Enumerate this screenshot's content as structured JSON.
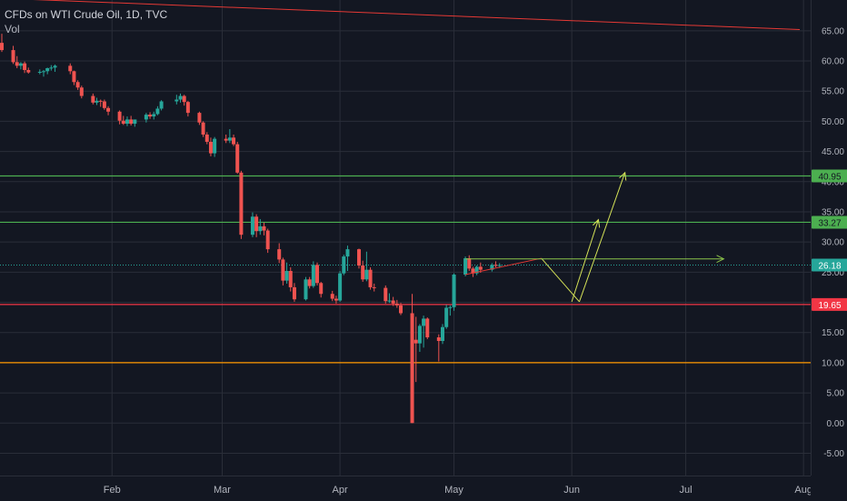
{
  "legend": {
    "title": "CFDs on WTI Crude Oil, 1D, TVC",
    "volume": "Vol"
  },
  "colors": {
    "background": "#131722",
    "grid": "#2a2e39",
    "up": "#26a69a",
    "down": "#ef5350",
    "level_green": "#4caf50",
    "level_red": "#f23645",
    "level_orange": "#ff9800",
    "arrow_yellow": "#d4e157",
    "arrow_green": "#8bc34a",
    "trend_red": "#e53935",
    "price_line": "#26a69a"
  },
  "chart_data": {
    "type": "candlestick",
    "title": "CFDs on WTI Crude Oil, 1D, TVC",
    "ylim": [
      -8.7,
      70.1
    ],
    "x_range_days": [
      3,
      213
    ],
    "y_ticks": [
      "65.00",
      "60.00",
      "55.00",
      "50.00",
      "45.00",
      "40.00",
      "35.00",
      "30.00",
      "25.00",
      "20.00",
      "15.00",
      "10.00",
      "5.00",
      "0.00",
      "-5.00"
    ],
    "x_labels": [
      {
        "label": "Feb",
        "day": 32
      },
      {
        "label": "Mar",
        "day": 61
      },
      {
        "label": "Apr",
        "day": 92
      },
      {
        "label": "May",
        "day": 122
      },
      {
        "label": "Jun",
        "day": 153
      },
      {
        "label": "Jul",
        "day": 183
      },
      {
        "label": "Aug",
        "day": 214
      }
    ],
    "candles": [
      [
        3,
        63,
        64.5,
        61.5,
        61.8
      ],
      [
        6,
        61.8,
        62.5,
        59.5,
        59.8
      ],
      [
        7,
        59.8,
        60.8,
        58.8,
        59.2
      ],
      [
        8,
        59.2,
        59.8,
        58.6,
        59.6
      ],
      [
        9,
        59.6,
        59.9,
        58,
        58.5
      ],
      [
        10,
        58.5,
        58.9,
        57.9,
        58.1
      ],
      [
        13,
        58.1,
        58.6,
        57.8,
        58.2
      ],
      [
        14,
        58.2,
        58.5,
        57.4,
        58.3
      ],
      [
        15,
        58.3,
        58.9,
        57.8,
        58.8
      ],
      [
        16,
        58.8,
        59.3,
        58.4,
        58.9
      ],
      [
        17,
        58.9,
        59.4,
        58.2,
        59.2
      ],
      [
        21,
        59.2,
        59.6,
        57.8,
        58.3
      ],
      [
        22,
        58.3,
        58.4,
        56,
        56.5
      ],
      [
        23,
        56.5,
        56.8,
        55.2,
        55.6
      ],
      [
        24,
        55.6,
        55.9,
        53.8,
        54.2
      ],
      [
        27,
        54.2,
        54.6,
        52.8,
        53.1
      ],
      [
        28,
        53.1,
        53.9,
        52.7,
        53.4
      ],
      [
        29,
        53.4,
        53.6,
        52.4,
        53.3
      ],
      [
        30,
        53.3,
        53.6,
        51.9,
        52.2
      ],
      [
        31,
        52.2,
        52.5,
        51,
        51.6
      ],
      [
        34,
        51.6,
        51.8,
        49.5,
        50.1
      ],
      [
        35,
        50.1,
        50.9,
        49.4,
        49.6
      ],
      [
        36,
        49.6,
        50.8,
        49.2,
        50.3
      ],
      [
        37,
        50.3,
        50.9,
        49.3,
        49.6
      ],
      [
        38,
        49.6,
        50.2,
        49.1,
        50.3
      ],
      [
        41,
        50.3,
        51.4,
        49.8,
        51.1
      ],
      [
        42,
        51.1,
        51.5,
        50.4,
        50.8
      ],
      [
        43,
        50.8,
        51.6,
        50.3,
        51.2
      ],
      [
        44,
        51.2,
        52.5,
        51,
        52.1
      ],
      [
        45,
        52.1,
        53.5,
        51.8,
        53.3
      ],
      [
        49,
        53.3,
        54.4,
        52.8,
        53.6
      ],
      [
        50,
        53.6,
        54.6,
        53.1,
        54.2
      ],
      [
        51,
        54.2,
        54.4,
        52.6,
        53.2
      ],
      [
        52,
        53.2,
        53.4,
        50.8,
        51.4
      ],
      [
        55,
        51.4,
        51.6,
        49.4,
        49.8
      ],
      [
        56,
        49.8,
        50,
        47.4,
        47.8
      ],
      [
        57,
        47.8,
        48.2,
        46.2,
        46.6
      ],
      [
        58,
        46.6,
        47.3,
        44.2,
        44.7
      ],
      [
        59,
        44.7,
        47.4,
        44.1,
        47.1
      ],
      [
        62,
        47.1,
        47.8,
        46.4,
        46.8
      ],
      [
        63,
        46.8,
        48.7,
        46.4,
        47.3
      ],
      [
        64,
        47.3,
        47.8,
        45.9,
        46.2
      ],
      [
        65,
        46.2,
        46.6,
        41.3,
        41.5
      ],
      [
        66,
        41.5,
        41.8,
        30.5,
        31.2
      ],
      [
        69,
        31.2,
        34.9,
        30.8,
        34.2
      ],
      [
        70,
        34.2,
        34.6,
        30.8,
        31.8
      ],
      [
        71,
        31.8,
        33.8,
        31.2,
        32.6
      ],
      [
        72,
        32.6,
        33.2,
        31.1,
        31.9
      ],
      [
        73,
        31.9,
        32.2,
        28.2,
        28.8
      ],
      [
        76,
        28.8,
        29.8,
        26.5,
        27.1
      ],
      [
        77,
        27.1,
        27.4,
        22.8,
        23.6
      ],
      [
        78,
        23.6,
        26.6,
        23.1,
        25.2
      ],
      [
        79,
        25.2,
        25.8,
        21.8,
        22.5
      ],
      [
        80,
        22.5,
        23.2,
        20.1,
        20.5
      ],
      [
        83,
        20.5,
        24.2,
        20.3,
        23.8
      ],
      [
        84,
        23.8,
        24.2,
        22.3,
        22.7
      ],
      [
        85,
        22.7,
        26.8,
        22.4,
        26.2
      ],
      [
        86,
        26.2,
        26.6,
        22.8,
        23.2
      ],
      [
        87,
        23.2,
        23.4,
        20.8,
        21.4
      ],
      [
        90,
        21.4,
        21.9,
        20.2,
        20.6
      ],
      [
        91,
        20.6,
        21.1,
        19.8,
        20.3
      ],
      [
        92,
        20.3,
        25.2,
        20.1,
        24.8
      ],
      [
        93,
        24.8,
        27.9,
        24.5,
        27.6
      ],
      [
        94,
        27.6,
        29.4,
        25.2,
        28.8
      ],
      [
        97,
        28.8,
        28.9,
        25.6,
        26.1
      ],
      [
        98,
        26.1,
        26.9,
        23.4,
        23.8
      ],
      [
        99,
        23.8,
        28.4,
        23.5,
        25.4
      ],
      [
        100,
        25.4,
        25.8,
        22.1,
        22.5
      ],
      [
        101,
        22.5,
        23.1,
        21.8,
        22.4
      ],
      [
        104,
        22.4,
        22.8,
        19.8,
        20.2
      ],
      [
        105,
        20.2,
        21.5,
        19.9,
        20.3
      ],
      [
        106,
        20.3,
        20.9,
        19.4,
        19.8
      ],
      [
        107,
        19.8,
        20.4,
        19.1,
        19.5
      ],
      [
        108,
        19.5,
        19.9,
        17.9,
        18.2
      ],
      [
        111,
        18.2,
        21.4,
        0,
        0
      ],
      [
        112,
        13.8,
        17.6,
        6.8,
        13.2
      ],
      [
        113,
        13.2,
        16.4,
        11.8,
        16.1
      ],
      [
        114,
        16.1,
        17.8,
        12.5,
        17.3
      ],
      [
        115,
        17.3,
        17.5,
        13.9,
        14.2
      ],
      [
        118,
        14.2,
        14.7,
        10.2,
        13.6
      ],
      [
        119,
        13.6,
        16.4,
        13.1,
        15.9
      ],
      [
        120,
        15.9,
        19.6,
        15.6,
        19.1
      ],
      [
        121,
        19.1,
        19.5,
        17.8,
        19.2
      ],
      [
        122,
        19.2,
        24.8,
        18.6,
        24.6
      ],
      [
        125,
        24.6,
        27.6,
        24.3,
        27.3
      ],
      [
        126,
        27.3,
        27.8,
        25.2,
        25.6
      ],
      [
        127,
        25.6,
        25.9,
        24.2,
        24.8
      ],
      [
        128,
        24.8,
        26.1,
        24.5,
        25.9
      ],
      [
        129,
        25.9,
        26.6,
        24.9,
        25.4
      ],
      [
        132,
        25.4,
        26.5,
        25.1,
        26.2
      ],
      [
        133,
        26.2,
        26.8,
        25.8,
        26.1
      ],
      [
        134,
        26.1,
        26.5,
        25.7,
        26.18
      ]
    ],
    "levels": [
      {
        "name": "resistance-2",
        "price": 40.95,
        "label": "40.95",
        "color": "#4caf50"
      },
      {
        "name": "resistance-1",
        "price": 33.27,
        "label": "33.27",
        "color": "#4caf50"
      },
      {
        "name": "support",
        "price": 19.65,
        "label": "19.65",
        "color": "#f23645"
      },
      {
        "name": "floor",
        "price": 10.0,
        "label": "",
        "color": "#ff9800"
      }
    ],
    "current_price": {
      "price": 26.18,
      "label": "26.18"
    },
    "drawings": [
      {
        "name": "long-trendline",
        "color": "#e53935",
        "points": [
          [
            -2,
            70.5
          ],
          [
            213,
            65.2
          ]
        ],
        "arrow": false
      },
      {
        "name": "short-uptrend",
        "color": "#e53935",
        "points": [
          [
            125,
            24.6
          ],
          [
            145,
            27.3
          ]
        ],
        "arrow": false
      },
      {
        "name": "projection-down",
        "color": "#d4e157",
        "points": [
          [
            145,
            27.3
          ],
          [
            155,
            20.1
          ]
        ],
        "arrow": false
      },
      {
        "name": "projection-up-1",
        "color": "#d4e157",
        "points": [
          [
            153,
            20.1
          ],
          [
            160,
            33.7
          ]
        ],
        "arrow": true
      },
      {
        "name": "projection-up-2",
        "color": "#d4e157",
        "points": [
          [
            155,
            20.1
          ],
          [
            167,
            41.5
          ]
        ],
        "arrow": true
      },
      {
        "name": "horizontal-target",
        "color": "#8bc34a",
        "points": [
          [
            125,
            27.2
          ],
          [
            193,
            27.2
          ]
        ],
        "arrow": true
      }
    ]
  }
}
